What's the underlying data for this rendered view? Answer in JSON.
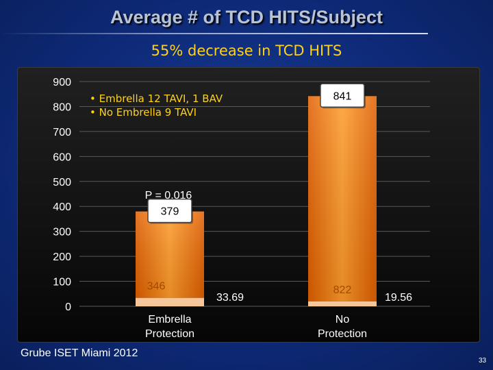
{
  "slide": {
    "title": "Average # of TCD HITS/Subject",
    "subtitle": "55% decrease in TCD HITS",
    "credit": "Grube ISET Miami 2012",
    "page_number": "33"
  },
  "chart_data": {
    "type": "bar",
    "stacked": true,
    "ylim": [
      0,
      900
    ],
    "yticks": [
      0,
      100,
      200,
      300,
      400,
      500,
      600,
      700,
      800,
      900
    ],
    "grid": true,
    "legend_notes": [
      "• Embrella 12 TAVI, 1 BAV",
      "• No Embrella 9 TAVI"
    ],
    "p_value": "P = 0.016",
    "groups": [
      {
        "label": [
          "Embrella",
          "Protection"
        ],
        "total": 379,
        "total_label": "379",
        "segments": [
          {
            "value": 33.69,
            "label": "33.69"
          },
          {
            "value": 346,
            "label": "346"
          }
        ]
      },
      {
        "label": [
          "No",
          "Protection"
        ],
        "total": 841,
        "total_label": "841",
        "segments": [
          {
            "value": 19.56,
            "label": "19.56"
          },
          {
            "value": 822,
            "label": "822"
          }
        ]
      }
    ],
    "colors": {
      "bar_top": "#ff9c2a",
      "bar_bottom": "#e05e00",
      "base_segment": "#f6c79a",
      "axis_text": "#ffffff",
      "callout_border": "#444444"
    }
  }
}
